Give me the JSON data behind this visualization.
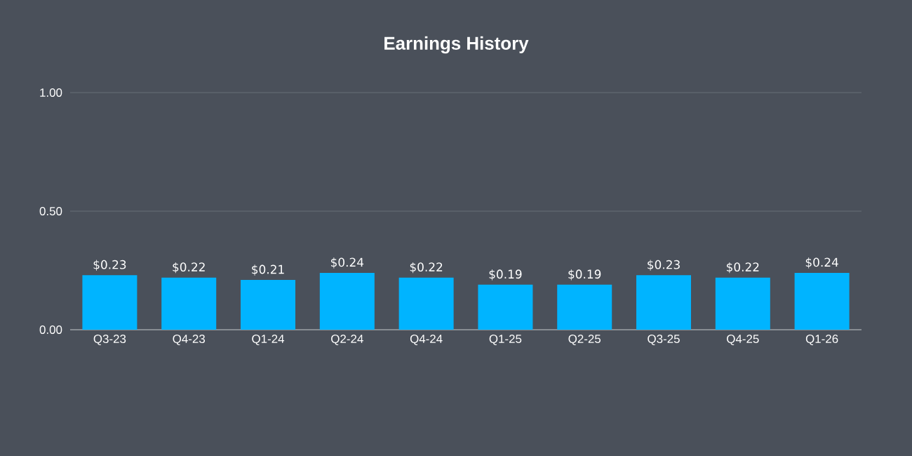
{
  "chart_data": {
    "type": "bar",
    "title": "Earnings History",
    "categories": [
      "Q3-23",
      "Q4-23",
      "Q1-24",
      "Q2-24",
      "Q4-24",
      "Q1-25",
      "Q2-25",
      "Q3-25",
      "Q4-25",
      "Q1-26"
    ],
    "values": [
      0.23,
      0.22,
      0.21,
      0.24,
      0.22,
      0.19,
      0.19,
      0.23,
      0.22,
      0.24
    ],
    "value_labels": [
      "$0.23",
      "$0.22",
      "$0.21",
      "$0.24",
      "$0.22",
      "$0.19",
      "$0.19",
      "$0.23",
      "$0.22",
      "$0.24"
    ],
    "color": "#00b4ff",
    "ylim": [
      0,
      1
    ],
    "yticks": [
      {
        "value": 0,
        "label": "0.00"
      },
      {
        "value": 0.5,
        "label": "0.50"
      },
      {
        "value": 1,
        "label": "1.00"
      }
    ],
    "grid": "y"
  }
}
